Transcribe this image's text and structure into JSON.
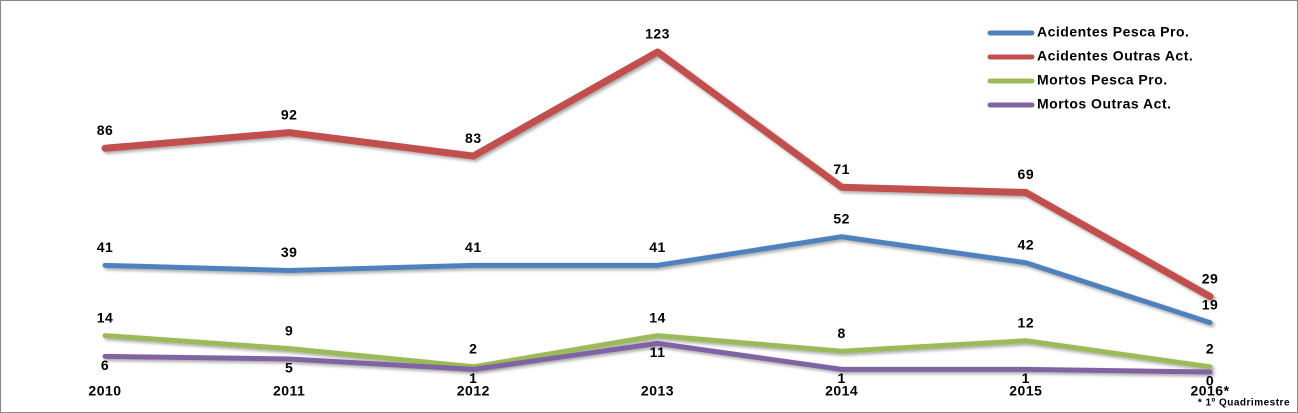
{
  "chart_data": {
    "type": "line",
    "categories": [
      "2010",
      "2011",
      "2012",
      "2013",
      "2014",
      "2015",
      "2016*"
    ],
    "series": [
      {
        "name": "Acidentes Pesca Pro.",
        "color": "#4f81bd",
        "values": [
          41,
          39,
          41,
          41,
          52,
          42,
          19
        ]
      },
      {
        "name": "Acidentes Outras Act.",
        "color": "#c0504d",
        "values": [
          86,
          92,
          83,
          123,
          71,
          69,
          29
        ]
      },
      {
        "name": "Mortos Pesca Pro.",
        "color": "#9bbb59",
        "values": [
          14,
          9,
          2,
          14,
          8,
          12,
          2
        ]
      },
      {
        "name": "Mortos Outras Act.",
        "color": "#8064a2",
        "values": [
          6,
          5,
          1,
          11,
          1,
          1,
          0
        ]
      }
    ],
    "footnote": "* 1º Quadrimestre",
    "legend": "upper right",
    "data_labels": true
  }
}
